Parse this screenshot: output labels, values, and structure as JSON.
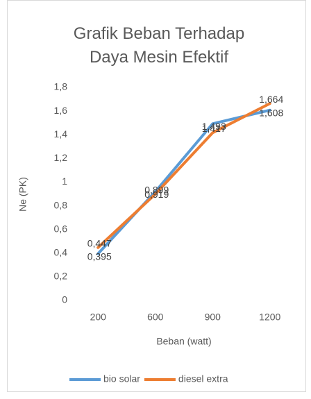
{
  "chart_data": {
    "type": "line",
    "title": "Grafik Beban Terhadap Daya Mesin Efektif",
    "x_label": "Beban (watt)",
    "y_label": "Ne (PK)",
    "categories": [
      "200",
      "600",
      "900",
      "1200"
    ],
    "series": [
      {
        "name": "bio solar",
        "color": "#5b9bd5",
        "values": [
          0.395,
          0.919,
          1.493,
          1.608
        ],
        "value_labels": [
          "0,395",
          "0,919",
          "1,493",
          "1,608"
        ]
      },
      {
        "name": "diesel extra",
        "color": "#ed7d31",
        "values": [
          0.447,
          0.899,
          1.417,
          1.664
        ],
        "value_labels": [
          "0,447",
          "0,899",
          "1,417",
          "1,664"
        ]
      }
    ],
    "ylim": [
      0,
      1.8
    ],
    "yticks": [
      0,
      {
        "value": 0.2,
        "label": "0,2"
      },
      {
        "value": 0.4,
        "label": "0,4"
      },
      {
        "value": 0.6,
        "label": "0,6"
      },
      {
        "value": 0.8,
        "label": "0,8"
      },
      1,
      {
        "value": 1.2,
        "label": "1,2"
      },
      {
        "value": 1.4,
        "label": "1,4"
      },
      {
        "value": 1.6,
        "label": "1,6"
      },
      {
        "value": 1.8,
        "label": "1,8"
      }
    ],
    "grid": false,
    "legend": "bottom"
  }
}
